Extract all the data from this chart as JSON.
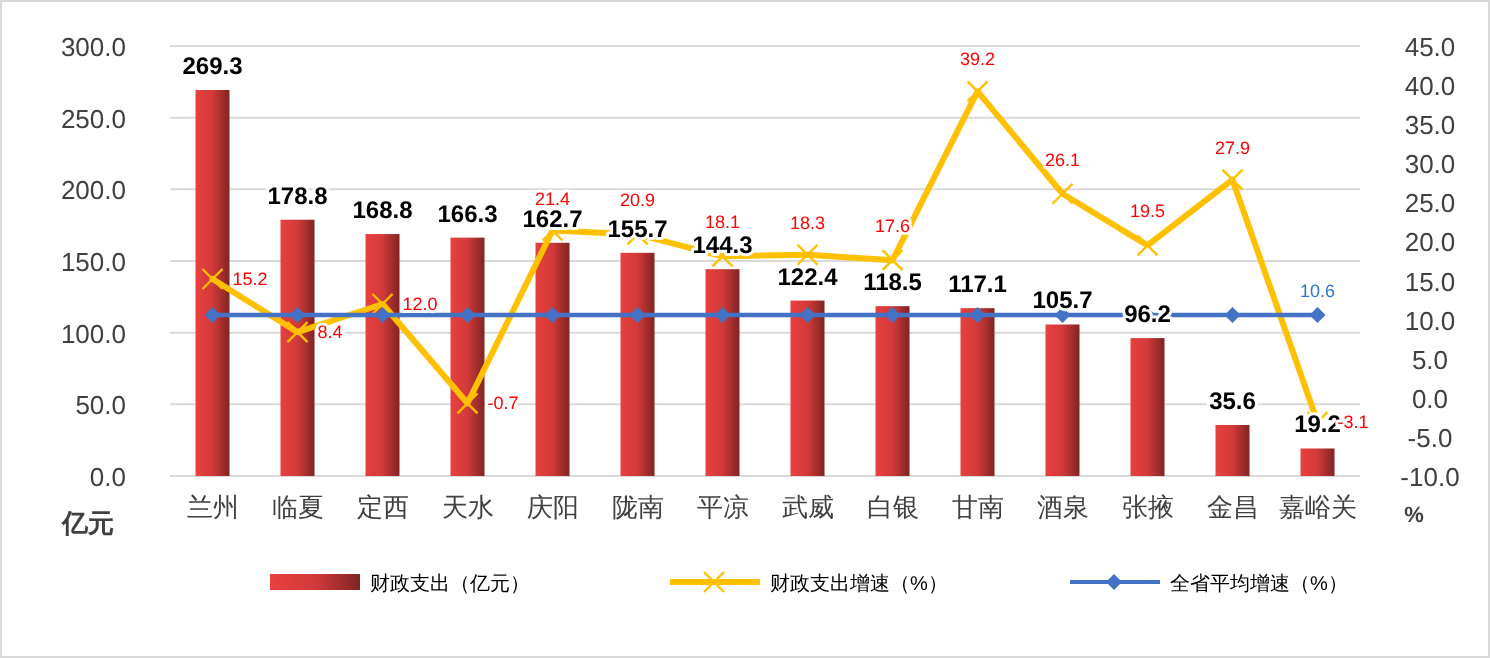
{
  "chart_data": {
    "type": "bar",
    "categories": [
      "兰州",
      "临夏",
      "定西",
      "天水",
      "庆阳",
      "陇南",
      "平凉",
      "武威",
      "白银",
      "甘南",
      "酒泉",
      "张掖",
      "金昌",
      "嘉峪关"
    ],
    "ylabel": "亿元",
    "y2label": "%",
    "ylim": [
      0,
      300
    ],
    "yticks": [
      {
        "value": 0,
        "label": "0.0"
      },
      {
        "value": 50,
        "label": "50.0"
      },
      {
        "value": 100,
        "label": "100.0"
      },
      {
        "value": 150,
        "label": "150.0"
      },
      {
        "value": 200,
        "label": "200.0"
      },
      {
        "value": 250,
        "label": "250.0"
      },
      {
        "value": 300,
        "label": "300.0"
      }
    ],
    "y2lim": [
      -10,
      45
    ],
    "y2ticks": [
      {
        "value": -10,
        "label": "-10.0"
      },
      {
        "value": -5,
        "label": "-5.0"
      },
      {
        "value": 0,
        "label": "0.0"
      },
      {
        "value": 5,
        "label": "5.0"
      },
      {
        "value": 10,
        "label": "10.0"
      },
      {
        "value": 15,
        "label": "15.0"
      },
      {
        "value": 20,
        "label": "20.0"
      },
      {
        "value": 25,
        "label": "25.0"
      },
      {
        "value": 30,
        "label": "30.0"
      },
      {
        "value": 35,
        "label": "35.0"
      },
      {
        "value": 40,
        "label": "40.0"
      },
      {
        "value": 45,
        "label": "45.0"
      }
    ],
    "grid": "y",
    "legend": "bottom",
    "series": [
      {
        "name": "财政支出（亿元）",
        "color": "#e8403f",
        "values": [
          269.3,
          178.8,
          168.8,
          166.3,
          162.7,
          155.7,
          144.3,
          122.4,
          118.5,
          117.1,
          105.7,
          96.2,
          35.6,
          19.2
        ],
        "value_labels": [
          "269.3",
          "178.8",
          "168.8",
          "166.3",
          "162.7",
          "155.7",
          "144.3",
          "122.4",
          "118.5",
          "117.1",
          "105.7",
          "96.2",
          "35.6",
          "19.2"
        ]
      },
      {
        "name": "财政支出增速（%）",
        "type": "line",
        "axis": "y2",
        "color": "#ffc000",
        "marker": "cross",
        "values": [
          15.2,
          8.4,
          12.0,
          -0.7,
          21.4,
          20.9,
          18.1,
          18.3,
          17.6,
          39.2,
          26.1,
          19.5,
          27.9,
          -3.1
        ],
        "value_labels": [
          "15.2",
          "8.4",
          "12.0",
          "-0.7",
          "21.4",
          "20.9",
          "18.1",
          "18.3",
          "17.6",
          "39.2",
          "26.1",
          "19.5",
          "27.9",
          "-3.1"
        ]
      },
      {
        "name": "全省平均增速（%）",
        "type": "line",
        "axis": "y2",
        "color": "#4472c4",
        "marker": "diamond",
        "values": [
          10.6,
          10.6,
          10.6,
          10.6,
          10.6,
          10.6,
          10.6,
          10.6,
          10.6,
          10.6,
          10.6,
          10.6,
          10.6,
          10.6
        ],
        "value_labels": [
          null,
          null,
          null,
          null,
          null,
          null,
          null,
          null,
          null,
          null,
          null,
          null,
          null,
          "10.6"
        ]
      }
    ]
  }
}
